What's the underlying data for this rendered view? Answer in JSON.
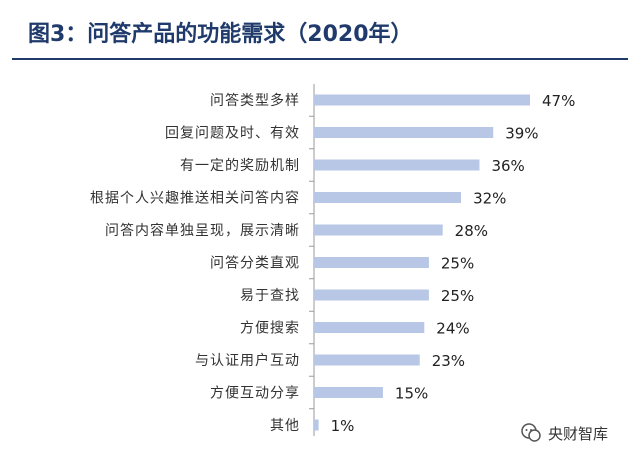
{
  "header": {
    "title": "图3：问答产品的功能需求（2020年）"
  },
  "chart_data": {
    "type": "bar",
    "orientation": "horizontal",
    "categories": [
      "问答类型多样",
      "回复问题及时、有效",
      "有一定的奖励机制",
      "根据个人兴趣推送相关问答内容",
      "问答内容单独呈现，展示清晰",
      "问答分类直观",
      "易于查找",
      "方便搜索",
      "与认证用户互动",
      "方便互动分享",
      "其他"
    ],
    "values": [
      47,
      39,
      36,
      32,
      28,
      25,
      25,
      24,
      23,
      15,
      1
    ],
    "value_labels": [
      "47%",
      "39%",
      "36%",
      "32%",
      "28%",
      "25%",
      "25%",
      "24%",
      "23%",
      "15%",
      "1%"
    ],
    "title": "图3：问答产品的功能需求（2020年）",
    "xlabel": "",
    "ylabel": "",
    "xlim": [
      0,
      47
    ],
    "grid": false,
    "bar_color": "#b7c7e5",
    "axis_color": "#9a9a9a"
  },
  "watermark": {
    "text": "央财智库",
    "icon": "wechat-icon"
  }
}
